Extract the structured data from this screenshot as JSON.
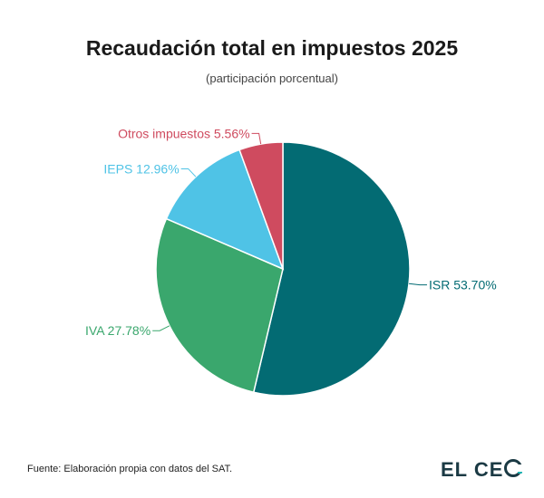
{
  "header": {
    "title": "Recaudación total en impuestos 2025",
    "subtitle": "(participación porcentual)"
  },
  "footer": {
    "source": "Fuente: Elaboración propia con datos del SAT.",
    "logo_text": "EL CEO"
  },
  "colors": {
    "isr": "#036b73",
    "iva": "#3aa76d",
    "ieps": "#4fc3e6",
    "otros": "#cf4b5f",
    "logo": "#1b3a44",
    "logo_accent": "#1eb3b3"
  },
  "chart_data": {
    "type": "pie",
    "title": "Recaudación total en impuestos 2025",
    "subtitle": "(participación porcentual)",
    "unit": "%",
    "slices": [
      {
        "label": "ISR",
        "value": 53.7,
        "display": "ISR 53.70%",
        "color": "#036b73"
      },
      {
        "label": "IVA",
        "value": 27.78,
        "display": "IVA 27.78%",
        "color": "#3aa76d"
      },
      {
        "label": "IEPS",
        "value": 12.96,
        "display": "IEPS 12.96%",
        "color": "#4fc3e6"
      },
      {
        "label": "Otros impuestos",
        "value": 5.56,
        "display": "Otros impuestos 5.56%",
        "color": "#cf4b5f"
      }
    ],
    "start_angle": "top",
    "direction": "clockwise",
    "legend": "none"
  }
}
